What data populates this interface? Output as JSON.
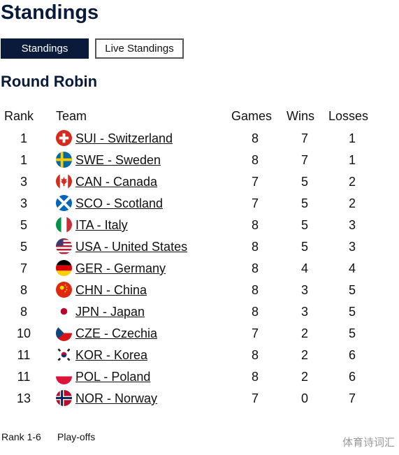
{
  "page": {
    "title": "Standings"
  },
  "tabs": [
    {
      "label": "Standings",
      "active": true
    },
    {
      "label": "Live Standings",
      "active": false
    }
  ],
  "section": {
    "title": "Round Robin"
  },
  "table": {
    "headers": {
      "rank": "Rank",
      "team": "Team",
      "games": "Games",
      "wins": "Wins",
      "losses": "Losses"
    },
    "rows": [
      {
        "rank": "1",
        "team": "SUI - Switzerland",
        "flag": "flag-switzerland-icon",
        "games": "8",
        "wins": "7",
        "losses": "1"
      },
      {
        "rank": "1",
        "team": "SWE - Sweden",
        "flag": "flag-sweden-icon",
        "games": "8",
        "wins": "7",
        "losses": "1"
      },
      {
        "rank": "3",
        "team": "CAN - Canada",
        "flag": "flag-canada-icon",
        "games": "7",
        "wins": "5",
        "losses": "2"
      },
      {
        "rank": "3",
        "team": "SCO - Scotland",
        "flag": "flag-scotland-icon",
        "games": "7",
        "wins": "5",
        "losses": "2"
      },
      {
        "rank": "5",
        "team": "ITA - Italy",
        "flag": "flag-italy-icon",
        "games": "8",
        "wins": "5",
        "losses": "3"
      },
      {
        "rank": "5",
        "team": "USA - United States",
        "flag": "flag-usa-icon",
        "games": "8",
        "wins": "5",
        "losses": "3"
      },
      {
        "rank": "7",
        "team": "GER - Germany",
        "flag": "flag-germany-icon",
        "games": "8",
        "wins": "4",
        "losses": "4"
      },
      {
        "rank": "8",
        "team": "CHN - China",
        "flag": "flag-china-icon",
        "games": "8",
        "wins": "3",
        "losses": "5"
      },
      {
        "rank": "8",
        "team": "JPN - Japan",
        "flag": "flag-japan-icon",
        "games": "8",
        "wins": "3",
        "losses": "5"
      },
      {
        "rank": "10",
        "team": "CZE - Czechia",
        "flag": "flag-czechia-icon",
        "games": "7",
        "wins": "2",
        "losses": "5"
      },
      {
        "rank": "11",
        "team": "KOR - Korea",
        "flag": "flag-korea-icon",
        "games": "8",
        "wins": "2",
        "losses": "6"
      },
      {
        "rank": "11",
        "team": "POL - Poland",
        "flag": "flag-poland-icon",
        "games": "8",
        "wins": "2",
        "losses": "6"
      },
      {
        "rank": "13",
        "team": "NOR - Norway",
        "flag": "flag-norway-icon",
        "games": "7",
        "wins": "0",
        "losses": "7"
      }
    ]
  },
  "legend": {
    "key": "Rank 1-6",
    "value": "Play-offs"
  },
  "watermark": "体育诗词汇",
  "colors": {
    "navy": "#0a1a3a",
    "red": "#d52b1e"
  }
}
